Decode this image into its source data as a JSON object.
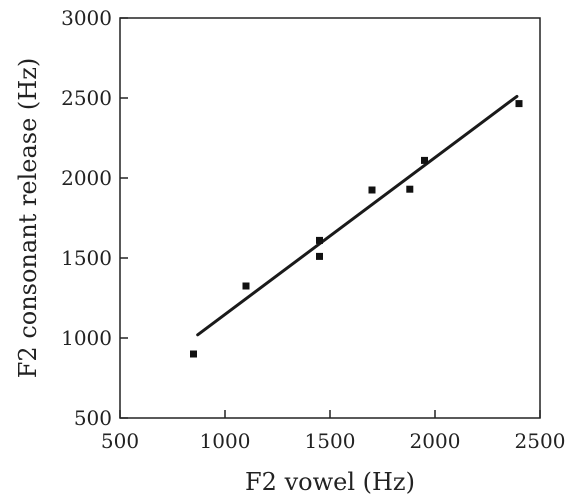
{
  "chart_data": {
    "type": "scatter",
    "xlabel": "F2 vowel (Hz)",
    "ylabel": "F2 consonant release (Hz)",
    "xlim": [
      500,
      2500
    ],
    "ylim": [
      500,
      3000
    ],
    "xticks": [
      500,
      1000,
      1500,
      2000,
      2500
    ],
    "yticks": [
      500,
      1000,
      1500,
      2000,
      2500,
      3000
    ],
    "xtick_labels": [
      "500",
      "1000",
      "1500",
      "2000",
      "2500"
    ],
    "ytick_labels": [
      "500",
      "1000",
      "1500",
      "2000",
      "2500",
      "3000"
    ],
    "grid": false,
    "points": [
      {
        "x": 850,
        "y": 900
      },
      {
        "x": 1100,
        "y": 1325
      },
      {
        "x": 1450,
        "y": 1610
      },
      {
        "x": 1450,
        "y": 1510
      },
      {
        "x": 1700,
        "y": 1925
      },
      {
        "x": 1880,
        "y": 1930
      },
      {
        "x": 1950,
        "y": 2110
      },
      {
        "x": 2400,
        "y": 2465
      }
    ],
    "fit_line": {
      "x": [
        870,
        2390
      ],
      "y": [
        1020,
        2510
      ]
    }
  }
}
